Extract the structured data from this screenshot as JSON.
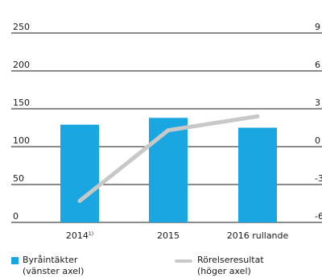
{
  "chart_data": {
    "type": "bar",
    "categories": [
      "2014",
      "2015",
      "2016 rullande"
    ],
    "category_footnotes": [
      "1)",
      "",
      ""
    ],
    "left_axis": {
      "ylim": [
        0,
        250
      ],
      "ticks": [
        "0",
        "50",
        "100",
        "150",
        "200",
        "250"
      ]
    },
    "right_axis": {
      "ylim": [
        -60,
        90
      ],
      "ticks": [
        "-6",
        "-3",
        "0",
        "3",
        "6",
        "9"
      ]
    },
    "series": [
      {
        "name": "Byråintäkter",
        "axis_note": "(vänster axel)",
        "type": "bar",
        "axis": "left",
        "color": "#1aa6e0",
        "values": [
          129,
          138,
          125
        ]
      },
      {
        "name": "Rörelseresultat",
        "axis_note": "(höger axel)",
        "type": "line",
        "axis": "right",
        "color": "#c8c8c8",
        "values": [
          -43,
          13,
          24
        ]
      }
    ],
    "grid": "horizontal",
    "legend_position": "bottom"
  }
}
